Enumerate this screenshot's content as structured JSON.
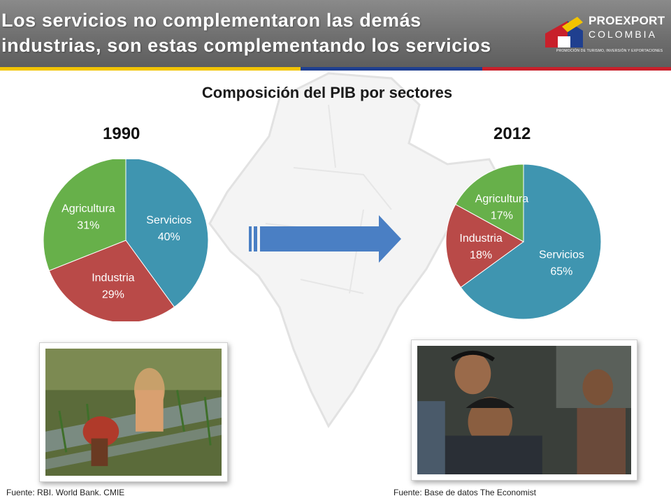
{
  "header": {
    "title_line_1": "Los servicios no complementaron las demás",
    "title_line_2": "industrias, son estas complementando los servicios"
  },
  "logo": {
    "name": "PROEXPORT",
    "sub": "COLOMBIA",
    "tagline": "PROMOCIÓN DE TURISMO, INVERSIÓN Y EXPORTACIONES"
  },
  "colors": {
    "stripe_yellow": "#f2c400",
    "stripe_blue": "#1f3f8f",
    "stripe_red": "#c8202b",
    "servicios": "#3f95b0",
    "industria": "#b94a48",
    "agricultura": "#67b04a",
    "arrow": "#4a7fc4"
  },
  "chart_data": [
    {
      "type": "pie",
      "title": "Composición del PIB por sectores",
      "subtitle": "1990",
      "slices": [
        {
          "label": "Servicios",
          "value": 40
        },
        {
          "label": "Industria",
          "value": 29
        },
        {
          "label": "Agricultura",
          "value": 31
        }
      ],
      "value_suffix": "%",
      "source": "Fuente: RBI. World Bank. CMIE"
    },
    {
      "type": "pie",
      "title": "Composición del PIB por sectores",
      "subtitle": "2012",
      "slices": [
        {
          "label": "Servicios",
          "value": 65
        },
        {
          "label": "Industria",
          "value": 18
        },
        {
          "label": "Agricultura",
          "value": 17
        }
      ],
      "value_suffix": "%",
      "source": "Fuente: Base de datos The Economist"
    }
  ]
}
